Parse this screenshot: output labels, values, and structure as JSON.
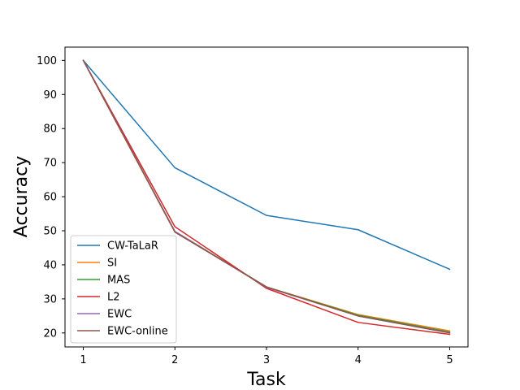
{
  "chart_data": {
    "type": "line",
    "title": "",
    "xlabel": "Task",
    "ylabel": "Accuracy",
    "x": [
      1,
      2,
      3,
      4,
      5
    ],
    "xticks": [
      "1",
      "2",
      "3",
      "4",
      "5"
    ],
    "yticks": [
      "20",
      "30",
      "40",
      "50",
      "60",
      "70",
      "80",
      "90",
      "100"
    ],
    "xlim": [
      0.8,
      5.2
    ],
    "ylim": [
      15.9,
      103.9
    ],
    "grid": false,
    "legend_position": "lower-left",
    "series": [
      {
        "name": "CW-TaLaR",
        "color": "#1f77b4",
        "values": [
          100,
          68.5,
          54.5,
          50.3,
          38.7
        ]
      },
      {
        "name": "SI",
        "color": "#ff7f0e",
        "values": [
          100,
          49.8,
          33.5,
          25.4,
          20.6
        ]
      },
      {
        "name": "MAS",
        "color": "#2ca02c",
        "values": [
          100,
          49.8,
          33.5,
          25.2,
          20.3
        ]
      },
      {
        "name": "L2",
        "color": "#d62728",
        "values": [
          100,
          51.2,
          33.1,
          23.1,
          19.6
        ]
      },
      {
        "name": "EWC",
        "color": "#9467bd",
        "values": [
          100,
          49.8,
          33.4,
          25.0,
          20.1
        ]
      },
      {
        "name": "EWC-online",
        "color": "#8c564b",
        "values": [
          100,
          49.6,
          33.5,
          25.0,
          20.0
        ]
      }
    ]
  }
}
